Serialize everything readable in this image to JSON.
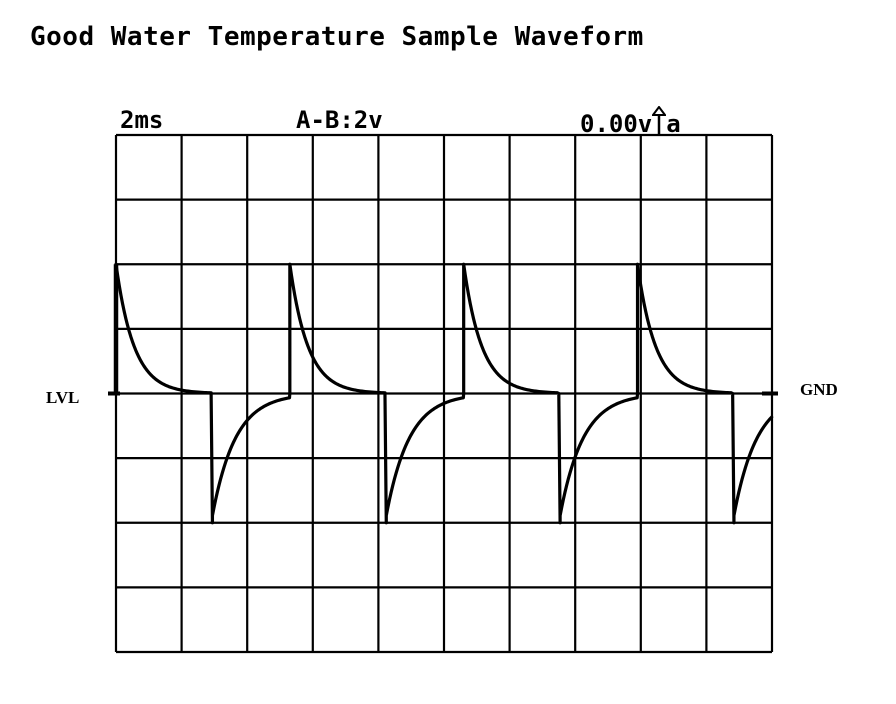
{
  "title": "Good Water Temperature Sample Waveform",
  "header": {
    "timebase": "2ms",
    "channel": "A-B:2v",
    "trigger": "0.00v",
    "trigger_channel": "a"
  },
  "labels": {
    "level": "LVL",
    "ground": "GND"
  },
  "colors": {
    "trace": "#000000",
    "grid": "#000000",
    "background": "#ffffff"
  },
  "chart_data": {
    "type": "line",
    "grid": true,
    "divisions": {
      "x": 10,
      "y": 8
    },
    "time_per_div_ms": 2,
    "volts_per_div": 2,
    "xlim_ms": [
      0,
      20
    ],
    "ylim_v": [
      -8,
      8
    ],
    "ground_level_v": 0,
    "trigger_level_v": 0,
    "trigger_edge": "rising",
    "signal": {
      "period_ms": 5.3,
      "cycles_visible": 4,
      "positive_peak_v": 4,
      "negative_peak_v": -4,
      "shape": "alternating decaying spikes",
      "pulse_starts_ms": [
        0,
        5.3,
        10.6,
        15.9
      ],
      "negative_spike_offset_ms": 2.9,
      "positive_decay_tau_ms": 0.55,
      "negative_decay_tau_ms": 0.7
    }
  }
}
